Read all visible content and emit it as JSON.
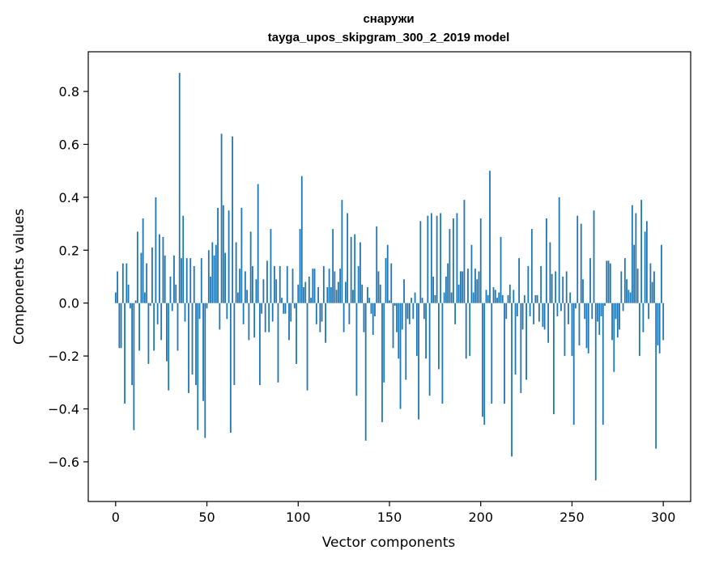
{
  "chart_data": {
    "type": "bar",
    "title_line1": "снаружи",
    "title_line2": "tayga_upos_skipgram_300_2_2019 model",
    "xlabel": "Vector components",
    "ylabel": "Components values",
    "xlim": [
      -15,
      315
    ],
    "ylim": [
      -0.75,
      0.95
    ],
    "x_ticks": [
      0,
      50,
      100,
      150,
      200,
      250,
      300
    ],
    "x_tick_labels": [
      "0",
      "50",
      "100",
      "150",
      "200",
      "250",
      "300"
    ],
    "y_ticks": [
      -0.6,
      -0.4,
      -0.2,
      0.0,
      0.2,
      0.4,
      0.6,
      0.8
    ],
    "y_tick_labels": [
      "−0.6",
      "−0.4",
      "−0.2",
      "0.0",
      "0.2",
      "0.4",
      "0.6",
      "0.8"
    ],
    "bar_color": "#1f77b4",
    "grid": false,
    "values": [
      0.04,
      0.12,
      -0.17,
      -0.17,
      0.15,
      -0.38,
      0.15,
      0.07,
      -0.02,
      -0.31,
      -0.48,
      0.01,
      0.27,
      -0.18,
      0.19,
      0.32,
      0.04,
      0.15,
      -0.23,
      -0.01,
      0.21,
      -0.18,
      0.4,
      -0.08,
      0.26,
      -0.14,
      0.25,
      0.18,
      -0.22,
      -0.33,
      0.1,
      -0.03,
      0.18,
      0.07,
      -0.18,
      0.87,
      0.17,
      0.33,
      -0.07,
      0.17,
      -0.34,
      0.17,
      -0.27,
      0.14,
      -0.31,
      -0.48,
      -0.06,
      0.17,
      -0.37,
      -0.51,
      -0.02,
      0.2,
      0.1,
      0.23,
      0.18,
      0.22,
      0.36,
      -0.1,
      0.64,
      0.37,
      0.19,
      -0.06,
      0.35,
      -0.49,
      0.63,
      -0.31,
      0.23,
      0.04,
      0.13,
      0.36,
      -0.08,
      0.12,
      0.05,
      -0.14,
      0.27,
      0.14,
      -0.13,
      0.09,
      0.45,
      -0.31,
      -0.04,
      0.09,
      -0.11,
      0.16,
      -0.11,
      0.28,
      -0.07,
      0.14,
      0.09,
      -0.3,
      0.14,
      0.02,
      -0.04,
      -0.04,
      0.14,
      -0.14,
      -0.07,
      0.13,
      -0.02,
      -0.23,
      0.07,
      0.28,
      0.48,
      0.06,
      0.08,
      -0.33,
      0.1,
      0.02,
      0.13,
      0.13,
      -0.08,
      0.06,
      -0.11,
      -0.07,
      0.14,
      -0.15,
      0.06,
      0.13,
      0.06,
      0.28,
      0.12,
      0.05,
      0.08,
      0.13,
      0.39,
      -0.11,
      0.08,
      0.34,
      -0.08,
      0.25,
      0.05,
      0.26,
      -0.35,
      0.14,
      0.23,
      0.07,
      -0.11,
      -0.52,
      0.06,
      0.02,
      -0.04,
      -0.12,
      -0.05,
      0.29,
      0.12,
      0.07,
      -0.45,
      -0.3,
      0.17,
      0.22,
      0.01,
      0.15,
      -0.17,
      -0.01,
      -0.11,
      -0.21,
      -0.4,
      -0.1,
      0.09,
      -0.29,
      -0.06,
      -0.08,
      0.02,
      -0.06,
      0.04,
      -0.2,
      -0.44,
      0.31,
      0.02,
      -0.06,
      -0.21,
      0.33,
      -0.35,
      0.34,
      0.1,
      0.03,
      0.33,
      -0.25,
      0.34,
      -0.38,
      0.04,
      0.1,
      0.15,
      0.28,
      0.04,
      0.32,
      -0.08,
      0.34,
      0.07,
      0.12,
      0.12,
      0.39,
      -0.21,
      0.13,
      -0.2,
      0.22,
      0.04,
      0.13,
      0.09,
      0.12,
      0.32,
      -0.43,
      -0.46,
      0.05,
      0.03,
      0.5,
      -0.38,
      0.06,
      0.05,
      0.02,
      0.04,
      0.25,
      0.03,
      -0.38,
      -0.06,
      0.03,
      0.07,
      -0.58,
      0.05,
      -0.27,
      -0.05,
      0.17,
      -0.34,
      -0.1,
      0.03,
      -0.29,
      0.14,
      -0.05,
      0.28,
      -0.08,
      0.03,
      0.03,
      -0.07,
      0.14,
      -0.09,
      -0.1,
      0.32,
      -0.15,
      0.23,
      0.11,
      -0.42,
      0.12,
      -0.05,
      0.4,
      -0.03,
      0.1,
      -0.2,
      0.12,
      -0.08,
      0.04,
      -0.2,
      -0.46,
      -0.02,
      0.33,
      -0.16,
      0.3,
      0.09,
      -0.06,
      -0.17,
      -0.19,
      0.17,
      -0.06,
      0.35,
      -0.67,
      -0.07,
      -0.12,
      -0.05,
      -0.46,
      -0.01,
      0.16,
      0.16,
      0.15,
      -0.14,
      -0.26,
      -0.06,
      -0.13,
      -0.1,
      0.12,
      -0.03,
      0.17,
      0.09,
      0.05,
      0.04,
      0.37,
      0.22,
      0.34,
      0.13,
      -0.2,
      0.39,
      -0.11,
      0.27,
      0.31,
      -0.06,
      0.15,
      0.08,
      0.12,
      -0.55,
      -0.16,
      -0.19,
      0.22,
      -0.14
    ]
  }
}
